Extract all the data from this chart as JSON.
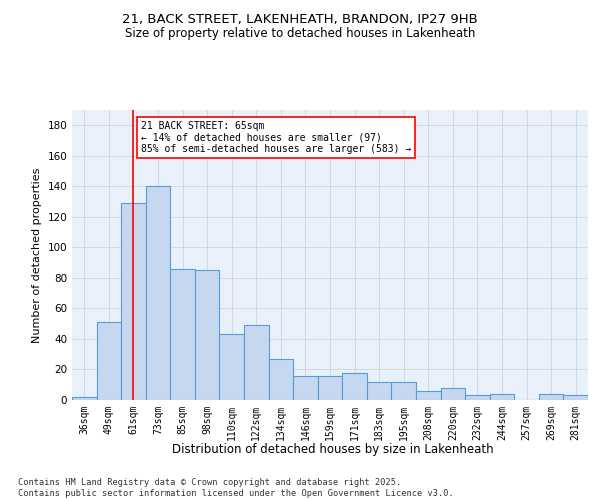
{
  "title_line1": "21, BACK STREET, LAKENHEATH, BRANDON, IP27 9HB",
  "title_line2": "Size of property relative to detached houses in Lakenheath",
  "xlabel": "Distribution of detached houses by size in Lakenheath",
  "ylabel": "Number of detached properties",
  "categories": [
    "36sqm",
    "49sqm",
    "61sqm",
    "73sqm",
    "85sqm",
    "98sqm",
    "110sqm",
    "122sqm",
    "134sqm",
    "146sqm",
    "159sqm",
    "171sqm",
    "183sqm",
    "195sqm",
    "208sqm",
    "220sqm",
    "232sqm",
    "244sqm",
    "257sqm",
    "269sqm",
    "281sqm"
  ],
  "values": [
    2,
    51,
    129,
    140,
    86,
    85,
    43,
    49,
    27,
    16,
    16,
    18,
    12,
    12,
    6,
    8,
    3,
    4,
    0,
    4,
    3
  ],
  "bar_color": "#c5d8f0",
  "bar_edge_color": "#5b9bd5",
  "background_color": "#ffffff",
  "grid_color": "#d0d8e8",
  "annotation_box_text": "21 BACK STREET: 65sqm\n← 14% of detached houses are smaller (97)\n85% of semi-detached houses are larger (583) →",
  "red_line_x": 2,
  "ylim": [
    0,
    190
  ],
  "yticks": [
    0,
    20,
    40,
    60,
    80,
    100,
    120,
    140,
    160,
    180
  ],
  "footnote": "Contains HM Land Registry data © Crown copyright and database right 2025.\nContains public sector information licensed under the Open Government Licence v3.0."
}
